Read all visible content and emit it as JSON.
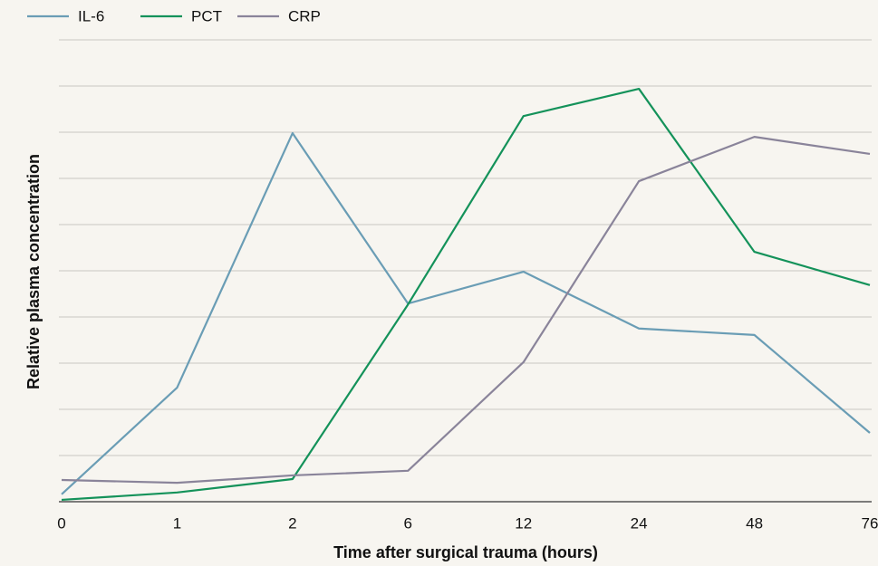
{
  "chart_data": {
    "type": "line",
    "x_label": "Time after surgical trauma (hours)",
    "y_label": "Relative plasma concentration",
    "categories": [
      "0",
      "1",
      "2",
      "6",
      "12",
      "24",
      "48",
      "76"
    ],
    "series": [
      {
        "name": "IL-6",
        "color": "#6a9db5",
        "values": [
          0.16,
          2.47,
          7.98,
          4.29,
          4.98,
          3.75,
          3.61,
          1.49
        ]
      },
      {
        "name": "PCT",
        "color": "#14925a",
        "values": [
          0.04,
          0.2,
          0.49,
          4.27,
          8.35,
          8.94,
          5.41,
          4.69
        ]
      },
      {
        "name": "CRP",
        "color": "#8a849a",
        "values": [
          0.47,
          0.41,
          0.57,
          0.67,
          3.02,
          6.94,
          7.9,
          7.53
        ]
      }
    ],
    "ylim": [
      0,
      10
    ],
    "yticks": [
      0,
      1,
      2,
      3,
      4,
      5,
      6,
      7,
      8,
      9,
      10
    ],
    "grid": true,
    "legend": "top-left"
  }
}
